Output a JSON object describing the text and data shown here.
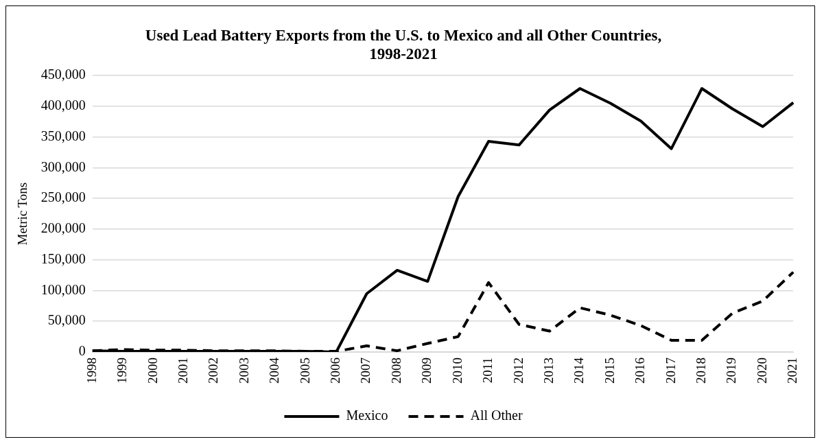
{
  "chart_data": {
    "type": "line",
    "title": "Used Lead Battery Exports from the U.S. to Mexico and all Other Countries, 1998-2021",
    "ylabel": "Metric Tons",
    "categories": [
      "1998",
      "1999",
      "2000",
      "2001",
      "2002",
      "2003",
      "2004",
      "2005",
      "2006",
      "2007",
      "2008",
      "2009",
      "2010",
      "2011",
      "2012",
      "2013",
      "2014",
      "2015",
      "2016",
      "2017",
      "2018",
      "2019",
      "2020",
      "2021"
    ],
    "series": [
      {
        "name": "Mexico",
        "color": "#000000",
        "line_style": "solid",
        "values": [
          2000,
          1000,
          1000,
          1000,
          1000,
          1000,
          1000,
          1000,
          0,
          95000,
          133000,
          115000,
          253000,
          343000,
          337000,
          394000,
          429000,
          405000,
          376000,
          331000,
          429000,
          396000,
          367000,
          406000
        ]
      },
      {
        "name": "All Other",
        "color": "#000000",
        "line_style": "dashed",
        "values": [
          2000,
          4000,
          3000,
          3000,
          2000,
          2000,
          2000,
          1000,
          1000,
          10000,
          2000,
          14000,
          25000,
          113000,
          45000,
          34000,
          72000,
          60000,
          43000,
          19000,
          19000,
          63000,
          83000,
          130000
        ]
      }
    ],
    "ylim": [
      0,
      450000
    ],
    "yticks": [
      {
        "value": 0,
        "label": "0"
      },
      {
        "value": 50000,
        "label": "50,000"
      },
      {
        "value": 100000,
        "label": "100,000"
      },
      {
        "value": 150000,
        "label": "150,000"
      },
      {
        "value": 200000,
        "label": "200,000"
      },
      {
        "value": 250000,
        "label": "250,000"
      },
      {
        "value": 300000,
        "label": "300,000"
      },
      {
        "value": 350000,
        "label": "350,000"
      },
      {
        "value": 400000,
        "label": "400,000"
      },
      {
        "value": 450000,
        "label": "450,000"
      }
    ],
    "grid": "y",
    "legend": "bottom",
    "marker": "none"
  }
}
